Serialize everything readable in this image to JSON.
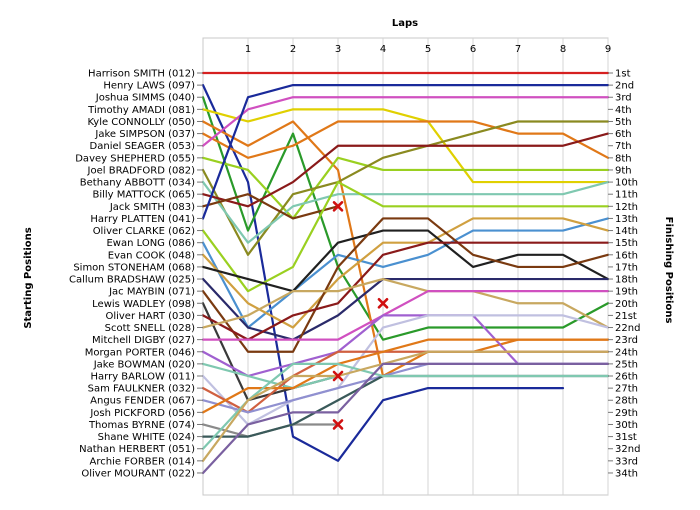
{
  "chart_data": {
    "type": "line",
    "title": "",
    "xlabel": "Laps",
    "ylabel_left": "Starting Positions",
    "ylabel_right": "Finishing Positions",
    "x": [
      0,
      1,
      2,
      3,
      4,
      5,
      6,
      7,
      8,
      9
    ],
    "x_tick_labels": [
      "1",
      "2",
      "3",
      "4",
      "5",
      "6",
      "7",
      "8",
      "9"
    ],
    "xlim": [
      0,
      9
    ],
    "ylim": [
      1,
      34
    ],
    "grid": "vertical",
    "y_axis_reversed": true,
    "finishing_labels": [
      "1st",
      "2nd",
      "3rd",
      "4th",
      "5th",
      "6th",
      "7th",
      "8th",
      "9th",
      "10th",
      "11th",
      "12th",
      "13th",
      "14th",
      "15th",
      "16th",
      "17th",
      "18th",
      "19th",
      "20th",
      "21st",
      "22nd",
      "23rd",
      "24th",
      "25th",
      "26th",
      "27th",
      "28th",
      "29th",
      "30th",
      "31st",
      "32nd",
      "33rd",
      "34th"
    ],
    "series": [
      {
        "name": "Harrison SMITH (012)",
        "color": "#d62020",
        "positions": [
          1,
          1,
          1,
          1,
          1,
          1,
          1,
          1,
          1,
          1
        ]
      },
      {
        "name": "Henry LAWS (097)",
        "color": "#1a2a9a",
        "positions": [
          2,
          10,
          31,
          33,
          28,
          27,
          27,
          27,
          27,
          null
        ],
        "retired": true
      },
      {
        "name": "Joshua SIMMS (040)",
        "color": "#2a9a2a",
        "positions": [
          3,
          14,
          6,
          17,
          23,
          22,
          22,
          22,
          22,
          20
        ]
      },
      {
        "name": "Timothy AMADI (081)",
        "color": "#e0d000",
        "positions": [
          4,
          5,
          4,
          4,
          4,
          5,
          10,
          10,
          10,
          10
        ]
      },
      {
        "name": "Kyle CONNOLLY (050)",
        "color": "#e07818",
        "positions": [
          5,
          7,
          5,
          9,
          26,
          24,
          24,
          23,
          23,
          23
        ]
      },
      {
        "name": "Jake SIMPSON (037)",
        "color": "#e07818",
        "positions": [
          6,
          8,
          7,
          5,
          5,
          5,
          5,
          6,
          6,
          8
        ]
      },
      {
        "name": "Daniel SEAGER (053)",
        "color": "#d050c0",
        "positions": [
          7,
          4,
          3,
          3,
          3,
          3,
          3,
          3,
          3,
          3
        ]
      },
      {
        "name": "Davey SHEPHERD (055)",
        "color": "#9ad020",
        "positions": [
          8,
          9,
          13,
          8,
          9,
          9,
          9,
          9,
          9,
          9
        ]
      },
      {
        "name": "Joel BRADFORD (082)",
        "color": "#8a8a20",
        "positions": [
          9,
          16,
          11,
          10,
          8,
          7,
          6,
          5,
          5,
          5
        ]
      },
      {
        "name": "Bethany ABBOTT (034)",
        "color": "#7fc8b0",
        "positions": [
          10,
          15,
          12,
          11,
          11,
          11,
          11,
          11,
          11,
          10
        ]
      },
      {
        "name": "Billy MATTOCK (065)",
        "color": "#8a1a1a",
        "positions": [
          11,
          12,
          10,
          7,
          7,
          7,
          7,
          7,
          7,
          6
        ]
      },
      {
        "name": "Jack SMITH (083)",
        "color": "#7a3a10",
        "positions": [
          12,
          11,
          13,
          12,
          null,
          null,
          null,
          null,
          null,
          null
        ],
        "retired": true
      },
      {
        "name": "Harry PLATTEN (041)",
        "color": "#1a2a9a",
        "positions": [
          13,
          3,
          2,
          2,
          2,
          2,
          2,
          2,
          2,
          2
        ]
      },
      {
        "name": "Oliver CLARKE (062)",
        "color": "#9ad020",
        "positions": [
          14,
          19,
          17,
          10,
          12,
          12,
          12,
          12,
          12,
          12
        ]
      },
      {
        "name": "Ewan LONG (086)",
        "color": "#4a90d0",
        "positions": [
          15,
          22,
          19,
          16,
          17,
          16,
          14,
          14,
          14,
          13
        ]
      },
      {
        "name": "Evan COOK (048)",
        "color": "#d0a040",
        "positions": [
          16,
          20,
          22,
          18,
          15,
          15,
          13,
          13,
          13,
          14
        ]
      },
      {
        "name": "Simon STONEHAM (068)",
        "color": "#202020",
        "positions": [
          17,
          18,
          19,
          15,
          14,
          14,
          17,
          16,
          16,
          18
        ]
      },
      {
        "name": "Callum BRADSHAW (025)",
        "color": "#2a2a6a",
        "positions": [
          18,
          22,
          23,
          21,
          18,
          18,
          18,
          18,
          18,
          18
        ]
      },
      {
        "name": "Jac MAYBIN (071)",
        "color": "#7a3a10",
        "positions": [
          19,
          24,
          24,
          17,
          13,
          13,
          16,
          17,
          17,
          16
        ]
      },
      {
        "name": "Lewis WADLEY (098)",
        "color": "#3a3a3a",
        "positions": [
          20,
          28,
          27,
          26,
          null,
          null,
          null,
          null,
          null,
          null
        ],
        "retired": true
      },
      {
        "name": "Oliver HART (030)",
        "color": "#8a1a1a",
        "positions": [
          21,
          23,
          21,
          20,
          16,
          15,
          15,
          15,
          15,
          15
        ]
      },
      {
        "name": "Scott SNELL (028)",
        "color": "#c8a860",
        "positions": [
          22,
          21,
          19,
          19,
          18,
          19,
          19,
          20,
          20,
          22
        ]
      },
      {
        "name": "Mitchell DIGBY (027)",
        "color": "#d050c0",
        "positions": [
          23,
          23,
          23,
          23,
          21,
          19,
          19,
          19,
          19,
          19
        ]
      },
      {
        "name": "Morgan PORTER (046)",
        "color": "#a060d0",
        "positions": [
          24,
          26,
          25,
          24,
          21,
          21,
          21,
          25,
          25,
          25
        ]
      },
      {
        "name": "Jake BOWMAN (020)",
        "color": "#7fc8b0",
        "positions": [
          25,
          26,
          27,
          26,
          null,
          null,
          null,
          null,
          null,
          null
        ],
        "retired": true
      },
      {
        "name": "Harry BARLOW (011)",
        "color": "#c0c0e0",
        "positions": [
          26,
          30,
          28,
          27,
          22,
          21,
          21,
          21,
          21,
          22
        ]
      },
      {
        "name": "Sam FAULKNER (032)",
        "color": "#d06040",
        "positions": [
          27,
          29,
          26,
          24,
          24,
          24,
          24,
          24,
          24,
          24
        ]
      },
      {
        "name": "Angus FENDER (067)",
        "color": "#9090d0",
        "positions": [
          28,
          29,
          28,
          27,
          26,
          25,
          25,
          25,
          25,
          25
        ]
      },
      {
        "name": "Josh PICKFORD (056)",
        "color": "#e07818",
        "positions": [
          29,
          27,
          27,
          25,
          24,
          23,
          23,
          23,
          23,
          23
        ]
      },
      {
        "name": "Thomas BYRNE (074)",
        "color": "#8a8a8a",
        "positions": [
          30,
          31,
          30,
          30,
          null,
          null,
          null,
          null,
          null,
          null
        ],
        "retired": true
      },
      {
        "name": "Shane WHITE (024)",
        "color": "#3a5a5a",
        "positions": [
          31,
          31,
          30,
          28,
          26,
          26,
          26,
          26,
          26,
          26
        ]
      },
      {
        "name": "Nathan HERBERT (051)",
        "color": "#7fc8b0",
        "positions": [
          32,
          28,
          25,
          25,
          26,
          26,
          26,
          26,
          26,
          26
        ]
      },
      {
        "name": "Archie FORBER (014)",
        "color": "#c8a860",
        "positions": [
          33,
          28,
          26,
          26,
          25,
          24,
          24,
          24,
          24,
          24
        ]
      },
      {
        "name": "Oliver MOURANT (022)",
        "color": "#7a60a0",
        "positions": [
          34,
          30,
          29,
          29,
          25,
          25,
          25,
          25,
          25,
          25
        ]
      }
    ],
    "retirement_markers": [
      {
        "lap": 3,
        "position": 12
      },
      {
        "lap": 4,
        "position": 20
      },
      {
        "lap": 3,
        "position": 26
      },
      {
        "lap": 3,
        "position": 30
      }
    ]
  }
}
